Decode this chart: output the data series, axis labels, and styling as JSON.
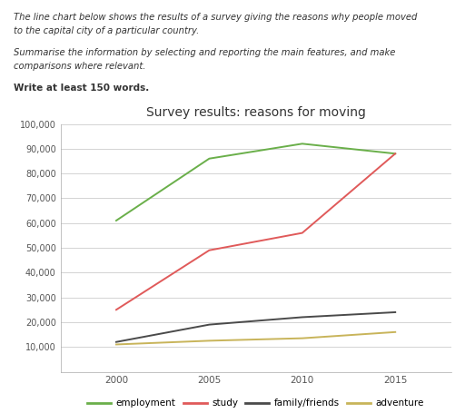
{
  "title": "Survey results: reasons for moving",
  "years": [
    2000,
    2005,
    2010,
    2015
  ],
  "series": {
    "employment": {
      "values": [
        61000,
        86000,
        92000,
        88000
      ],
      "color": "#6aaf4a"
    },
    "study": {
      "values": [
        25000,
        49000,
        56000,
        88000
      ],
      "color": "#e05a5a"
    },
    "family/friends": {
      "values": [
        12000,
        19000,
        22000,
        24000
      ],
      "color": "#4a4a4a"
    },
    "adventure": {
      "values": [
        11000,
        12500,
        13500,
        16000
      ],
      "color": "#c8b45a"
    }
  },
  "ylim": [
    0,
    100000
  ],
  "yticks": [
    0,
    10000,
    20000,
    30000,
    40000,
    50000,
    60000,
    70000,
    80000,
    90000,
    100000
  ],
  "ytick_labels": [
    "",
    "10,000",
    "20,000",
    "30,000",
    "40,000",
    "50,000",
    "60,000",
    "70,000",
    "80,000",
    "90,000",
    "100,000"
  ],
  "xticks": [
    2000,
    2005,
    2010,
    2015
  ],
  "xlim": [
    1997,
    2018
  ],
  "grid_color": "#cccccc",
  "title_fontsize": 10,
  "text_block": [
    {
      "text": "The line chart below shows the results of a survey giving the reasons why people moved",
      "style": "italic",
      "weight": "normal",
      "size": 7.2
    },
    {
      "text": "to the capital city of a particular country.",
      "style": "italic",
      "weight": "normal",
      "size": 7.2
    },
    {
      "text": "",
      "style": "normal",
      "weight": "normal",
      "size": 5
    },
    {
      "text": "Summarise the information by selecting and reporting the main features, and make",
      "style": "italic",
      "weight": "normal",
      "size": 7.2
    },
    {
      "text": "comparisons where relevant.",
      "style": "italic",
      "weight": "normal",
      "size": 7.2
    },
    {
      "text": "",
      "style": "normal",
      "weight": "normal",
      "size": 5
    },
    {
      "text": "Write at least 150 words.",
      "style": "normal",
      "weight": "bold",
      "size": 7.5
    }
  ],
  "legend_order": [
    "employment",
    "study",
    "family/friends",
    "adventure"
  ]
}
